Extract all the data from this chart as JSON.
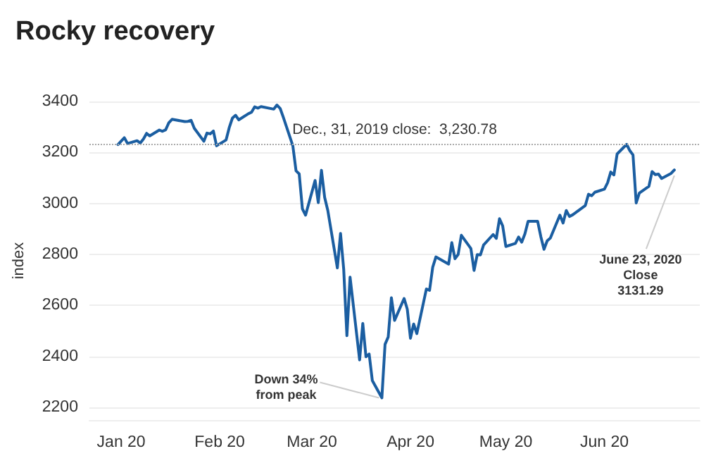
{
  "chart_data": {
    "type": "line",
    "title": "Rocky recovery",
    "ylabel": "index",
    "x": [
      "2019-12-31",
      "2020-01-02",
      "2020-01-03",
      "2020-01-06",
      "2020-01-07",
      "2020-01-08",
      "2020-01-09",
      "2020-01-10",
      "2020-01-13",
      "2020-01-14",
      "2020-01-15",
      "2020-01-16",
      "2020-01-17",
      "2020-01-21",
      "2020-01-22",
      "2020-01-23",
      "2020-01-24",
      "2020-01-27",
      "2020-01-28",
      "2020-01-29",
      "2020-01-30",
      "2020-01-31",
      "2020-02-03",
      "2020-02-04",
      "2020-02-05",
      "2020-02-06",
      "2020-02-07",
      "2020-02-10",
      "2020-02-11",
      "2020-02-12",
      "2020-02-13",
      "2020-02-14",
      "2020-02-18",
      "2020-02-19",
      "2020-02-20",
      "2020-02-21",
      "2020-02-24",
      "2020-02-25",
      "2020-02-26",
      "2020-02-27",
      "2020-02-28",
      "2020-03-02",
      "2020-03-03",
      "2020-03-04",
      "2020-03-05",
      "2020-03-06",
      "2020-03-09",
      "2020-03-10",
      "2020-03-11",
      "2020-03-12",
      "2020-03-13",
      "2020-03-16",
      "2020-03-17",
      "2020-03-18",
      "2020-03-19",
      "2020-03-20",
      "2020-03-23",
      "2020-03-24",
      "2020-03-25",
      "2020-03-26",
      "2020-03-27",
      "2020-03-30",
      "2020-03-31",
      "2020-04-01",
      "2020-04-02",
      "2020-04-03",
      "2020-04-06",
      "2020-04-07",
      "2020-04-08",
      "2020-04-09",
      "2020-04-13",
      "2020-04-14",
      "2020-04-15",
      "2020-04-16",
      "2020-04-17",
      "2020-04-20",
      "2020-04-21",
      "2020-04-22",
      "2020-04-23",
      "2020-04-24",
      "2020-04-27",
      "2020-04-28",
      "2020-04-29",
      "2020-04-30",
      "2020-05-01",
      "2020-05-04",
      "2020-05-05",
      "2020-05-06",
      "2020-05-07",
      "2020-05-08",
      "2020-05-11",
      "2020-05-12",
      "2020-05-13",
      "2020-05-14",
      "2020-05-15",
      "2020-05-18",
      "2020-05-19",
      "2020-05-20",
      "2020-05-21",
      "2020-05-22",
      "2020-05-26",
      "2020-05-27",
      "2020-05-28",
      "2020-05-29",
      "2020-06-01",
      "2020-06-02",
      "2020-06-03",
      "2020-06-04",
      "2020-06-05",
      "2020-06-08",
      "2020-06-09",
      "2020-06-10",
      "2020-06-11",
      "2020-06-12",
      "2020-06-15",
      "2020-06-16",
      "2020-06-17",
      "2020-06-18",
      "2020-06-19",
      "2020-06-22",
      "2020-06-23"
    ],
    "series": [
      {
        "color": "#1b5ea1",
        "values": [
          3231,
          3258,
          3235,
          3246,
          3237,
          3253,
          3275,
          3265,
          3288,
          3283,
          3289,
          3317,
          3330,
          3321,
          3322,
          3326,
          3295,
          3244,
          3276,
          3273,
          3284,
          3226,
          3249,
          3298,
          3335,
          3346,
          3328,
          3352,
          3358,
          3379,
          3374,
          3380,
          3370,
          3386,
          3373,
          3338,
          3226,
          3128,
          3116,
          2979,
          2954,
          3090,
          3003,
          3130,
          3024,
          2972,
          2747,
          2882,
          2741,
          2481,
          2711,
          2386,
          2529,
          2398,
          2409,
          2305,
          2237,
          2447,
          2476,
          2630,
          2541,
          2627,
          2585,
          2471,
          2527,
          2489,
          2664,
          2659,
          2750,
          2790,
          2762,
          2846,
          2783,
          2800,
          2875,
          2823,
          2737,
          2799,
          2798,
          2837,
          2878,
          2863,
          2940,
          2912,
          2831,
          2843,
          2868,
          2848,
          2881,
          2930,
          2930,
          2870,
          2820,
          2853,
          2864,
          2954,
          2923,
          2972,
          2949,
          2955,
          2992,
          3036,
          3030,
          3044,
          3056,
          3081,
          3123,
          3112,
          3194,
          3232,
          3207,
          3190,
          3002,
          3041,
          3067,
          3125,
          3113,
          3115,
          3098,
          3118,
          3131.29
        ]
      }
    ],
    "xlim": [
      "2019-12-22",
      "2020-07-01"
    ],
    "xticks": [
      {
        "value": "2020-01-01",
        "label": "Jan 20"
      },
      {
        "value": "2020-02-01",
        "label": "Feb 20"
      },
      {
        "value": "2020-03-01",
        "label": "Mar 20"
      },
      {
        "value": "2020-04-01",
        "label": "Apr 20"
      },
      {
        "value": "2020-05-01",
        "label": "May 20"
      },
      {
        "value": "2020-06-01",
        "label": "Jun 20"
      }
    ],
    "ylim": [
      2150,
      3400
    ],
    "yticks": [
      2200,
      2400,
      2600,
      2800,
      3000,
      3200,
      3400
    ],
    "grid": "y",
    "marker": "none",
    "line_style": "solid",
    "ref_lines": [
      {
        "axis": "y",
        "value": 3230.78,
        "label": "Dec., 31, 2019 close:  3,230.78",
        "color": "#aaaaaa",
        "line_style": "dotted"
      }
    ],
    "annotations": [
      {
        "text": "Down 34%\nfrom peak",
        "x": "2020-03-23",
        "y": 2237
      },
      {
        "text": "June 23, 2020\nClose\n3131.29",
        "x": "2020-06-23",
        "y": 3131.29
      }
    ]
  }
}
